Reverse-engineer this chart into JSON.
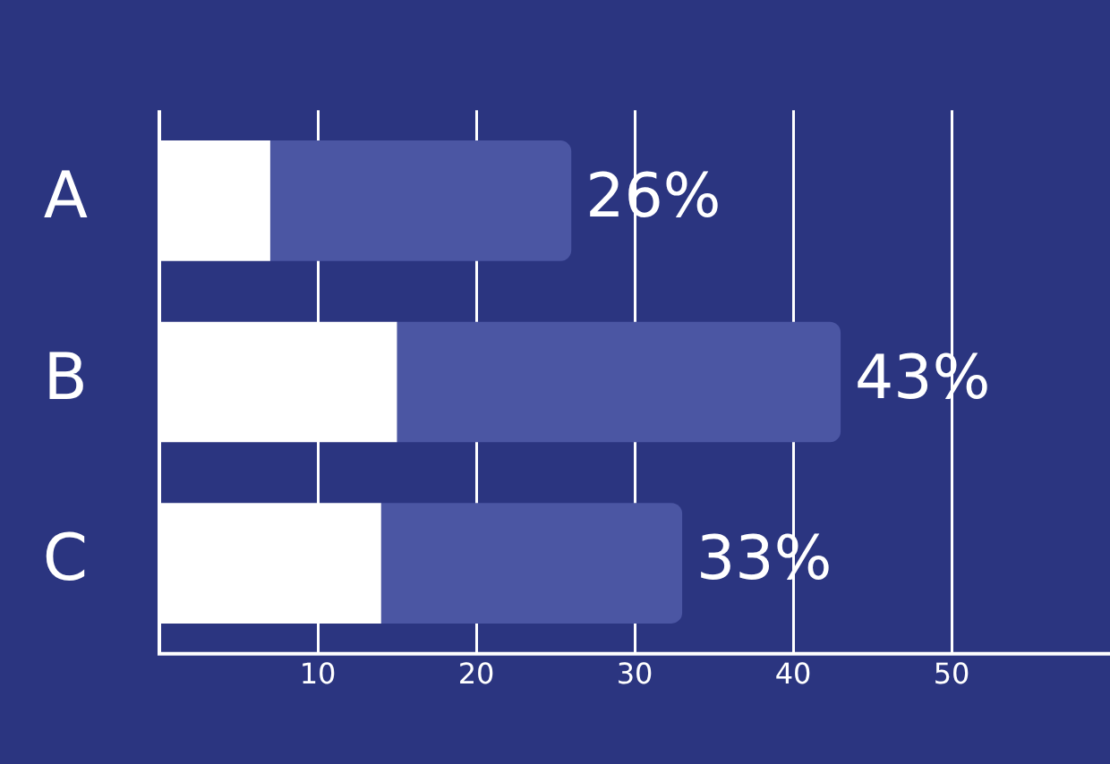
{
  "chart_data": {
    "type": "bar",
    "orientation": "horizontal",
    "stacked": true,
    "categories": [
      "A",
      "B",
      "C"
    ],
    "series": [
      {
        "color": "#ffffff",
        "values": [
          7,
          15,
          14
        ]
      },
      {
        "color": "#4b56a3",
        "values": [
          19,
          28,
          19
        ]
      }
    ],
    "totals": [
      "26%",
      "43%",
      "33%"
    ],
    "xlim": [
      0,
      60
    ],
    "xticks": [
      10,
      20,
      30,
      40,
      50
    ],
    "grid": "x",
    "legend": false
  }
}
